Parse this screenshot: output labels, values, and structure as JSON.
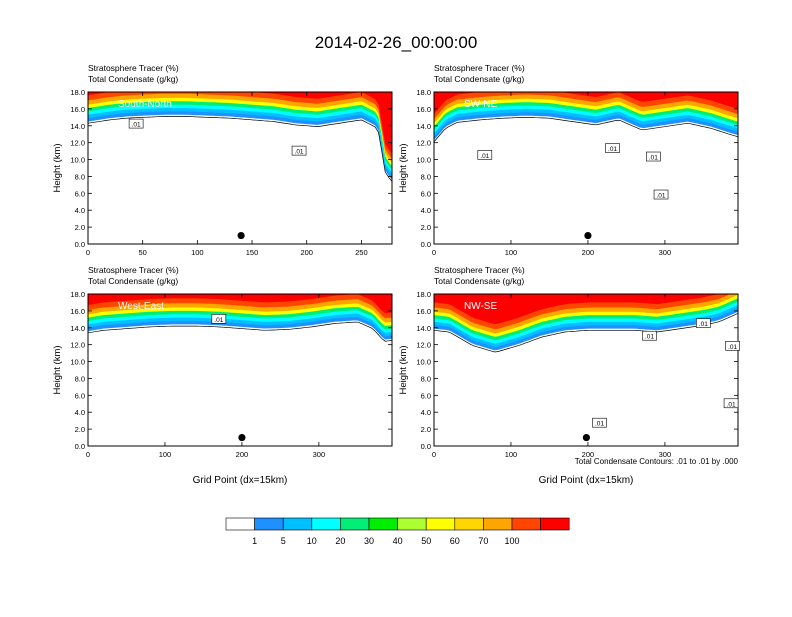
{
  "figure": {
    "title": "2014-02-26_00:00:00",
    "contour_note": "Total Condensate Contours: .01 to .01 by .000"
  },
  "colorbar": {
    "colors": [
      "#ffffff",
      "#1e90ff",
      "#00bfff",
      "#00ffff",
      "#00ee76",
      "#00ee00",
      "#adff2f",
      "#ffff00",
      "#ffd700",
      "#ffa500",
      "#ff4500",
      "#ff0000"
    ],
    "labels": [
      "1",
      "5",
      "10",
      "20",
      "30",
      "40",
      "50",
      "60",
      "70",
      "100"
    ]
  },
  "chart_data": [
    {
      "type": "heatmap",
      "region": "South-North",
      "title_line1": "Stratosphere Tracer   (%)",
      "title_line2": "Total Condensate   (g/kg)",
      "ylabel": "Height (km)",
      "xlabel": "",
      "xlim": [
        0,
        278
      ],
      "ylim": [
        0,
        18
      ],
      "xticks": [
        "0",
        "50",
        "100",
        "150",
        "200",
        "250"
      ],
      "xtick_values": [
        0,
        50,
        100,
        150,
        200,
        250
      ],
      "yticks": [
        "0.0",
        "2.0",
        "4.0",
        "6.0",
        "8.0",
        "10.0",
        "12.0",
        "14.0",
        "16.0",
        "18.0"
      ],
      "tropopause_x": [
        0,
        10,
        20,
        35,
        50,
        70,
        90,
        110,
        130,
        150,
        170,
        190,
        210,
        230,
        250,
        265,
        272,
        278
      ],
      "tropopause_y": [
        15.4,
        15.6,
        15.8,
        16.0,
        16.1,
        16.2,
        16.2,
        16.1,
        16.0,
        15.8,
        15.6,
        15.2,
        15.0,
        15.4,
        15.8,
        14.8,
        9.5,
        8.5
      ],
      "contour_labels": [
        {
          "x": 44,
          "y": 14.2,
          "text": ".01"
        },
        {
          "x": 193,
          "y": 11.0,
          "text": ".01"
        }
      ],
      "marker": {
        "x": 140,
        "y": 1.0
      }
    },
    {
      "type": "heatmap",
      "region": "SW-NE",
      "title_line1": "Stratosphere Tracer   (%)",
      "title_line2": "Total Condensate   (g/kg)",
      "ylabel": "Height (km)",
      "xlabel": "",
      "xlim": [
        0,
        395
      ],
      "ylim": [
        0,
        18
      ],
      "xticks": [
        "0",
        "100",
        "200",
        "300"
      ],
      "xtick_values": [
        0,
        100,
        200,
        300
      ],
      "yticks": [
        "0.0",
        "2.0",
        "4.0",
        "6.0",
        "8.0",
        "10.0",
        "12.0",
        "14.0",
        "16.0",
        "18.0"
      ],
      "tropopause_x": [
        0,
        15,
        30,
        60,
        90,
        120,
        150,
        180,
        210,
        240,
        270,
        300,
        330,
        360,
        380,
        395
      ],
      "tropopause_y": [
        13.2,
        14.8,
        15.5,
        15.8,
        16.0,
        16.1,
        16.0,
        15.6,
        15.2,
        15.8,
        14.6,
        15.0,
        15.4,
        14.8,
        14.2,
        13.8
      ],
      "contour_labels": [
        {
          "x": 66,
          "y": 10.5,
          "text": ".01"
        },
        {
          "x": 232,
          "y": 11.3,
          "text": ".01"
        },
        {
          "x": 285,
          "y": 10.3,
          "text": ".01"
        },
        {
          "x": 295,
          "y": 5.8,
          "text": ".01"
        }
      ],
      "marker": {
        "x": 200,
        "y": 1.0
      }
    },
    {
      "type": "heatmap",
      "region": "West-East",
      "title_line1": "Stratosphere Tracer   (%)",
      "title_line2": "Total Condensate   (g/kg)",
      "ylabel": "Height (km)",
      "xlabel": "Grid Point (dx=15km)",
      "xlim": [
        0,
        395
      ],
      "ylim": [
        0,
        18
      ],
      "xticks": [
        "0",
        "100",
        "200",
        "300"
      ],
      "xtick_values": [
        0,
        100,
        200,
        300
      ],
      "yticks": [
        "0.0",
        "2.0",
        "4.0",
        "6.0",
        "8.0",
        "10.0",
        "12.0",
        "14.0",
        "16.0",
        "18.0"
      ],
      "tropopause_x": [
        0,
        20,
        50,
        80,
        110,
        140,
        170,
        200,
        230,
        260,
        290,
        320,
        350,
        370,
        385,
        395
      ],
      "tropopause_y": [
        14.5,
        14.8,
        15.0,
        15.2,
        15.3,
        15.3,
        15.2,
        15.0,
        14.8,
        14.9,
        15.2,
        15.6,
        15.8,
        15.0,
        13.5,
        13.6
      ],
      "contour_labels": [
        {
          "x": 170,
          "y": 15.0,
          "text": ".01"
        }
      ],
      "marker": {
        "x": 200,
        "y": 1.0
      }
    },
    {
      "type": "heatmap",
      "region": "NW-SE",
      "title_line1": "Stratosphere Tracer   (%)",
      "title_line2": "Total Condensate   (g/kg)",
      "ylabel": "Height (km)",
      "xlabel": "Grid Point (dx=15km)",
      "xlim": [
        0,
        395
      ],
      "ylim": [
        0,
        18
      ],
      "xticks": [
        "0",
        "100",
        "200",
        "300"
      ],
      "xtick_values": [
        0,
        100,
        200,
        300
      ],
      "yticks": [
        "0.0",
        "2.0",
        "4.0",
        "6.0",
        "8.0",
        "10.0",
        "12.0",
        "14.0",
        "16.0",
        "18.0"
      ],
      "tropopause_x": [
        0,
        20,
        50,
        80,
        110,
        140,
        170,
        200,
        230,
        260,
        290,
        320,
        350,
        370,
        385,
        395
      ],
      "tropopause_y": [
        14.8,
        14.6,
        13.0,
        12.2,
        13.0,
        14.0,
        14.6,
        14.8,
        14.8,
        14.8,
        14.6,
        15.0,
        15.4,
        15.8,
        16.4,
        16.8
      ],
      "contour_labels": [
        {
          "x": 280,
          "y": 13.0,
          "text": ".01"
        },
        {
          "x": 350,
          "y": 14.5,
          "text": ".01"
        },
        {
          "x": 388,
          "y": 11.8,
          "text": ".01"
        },
        {
          "x": 386,
          "y": 5.0,
          "text": ".01"
        },
        {
          "x": 215,
          "y": 2.7,
          "text": ".01"
        }
      ],
      "marker": {
        "x": 198,
        "y": 1.0
      }
    }
  ]
}
